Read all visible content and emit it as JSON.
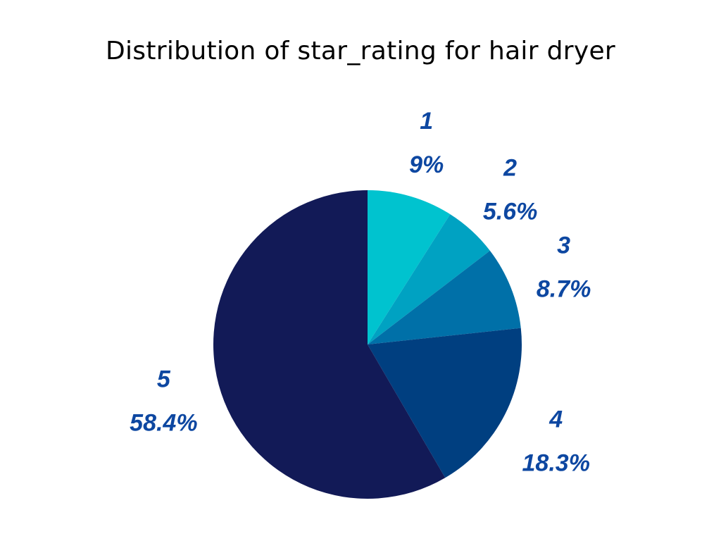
{
  "chart_data": {
    "type": "pie",
    "title": "Distribution of star_rating for hair dryer",
    "label_color": "#0d47a1",
    "slices": [
      {
        "category": "1",
        "label": "1",
        "percent": 9.0,
        "percent_label": "9%",
        "color": "#00c3cf"
      },
      {
        "category": "2",
        "label": "2",
        "percent": 5.6,
        "percent_label": "5.6%",
        "color": "#00a2c2"
      },
      {
        "category": "3",
        "label": "3",
        "percent": 8.7,
        "percent_label": "8.7%",
        "color": "#0070a8"
      },
      {
        "category": "4",
        "label": "4",
        "percent": 18.3,
        "percent_label": "18.3%",
        "color": "#003f80"
      },
      {
        "category": "5",
        "label": "5",
        "percent": 58.4,
        "percent_label": "58.4%",
        "color": "#121a57"
      }
    ]
  }
}
